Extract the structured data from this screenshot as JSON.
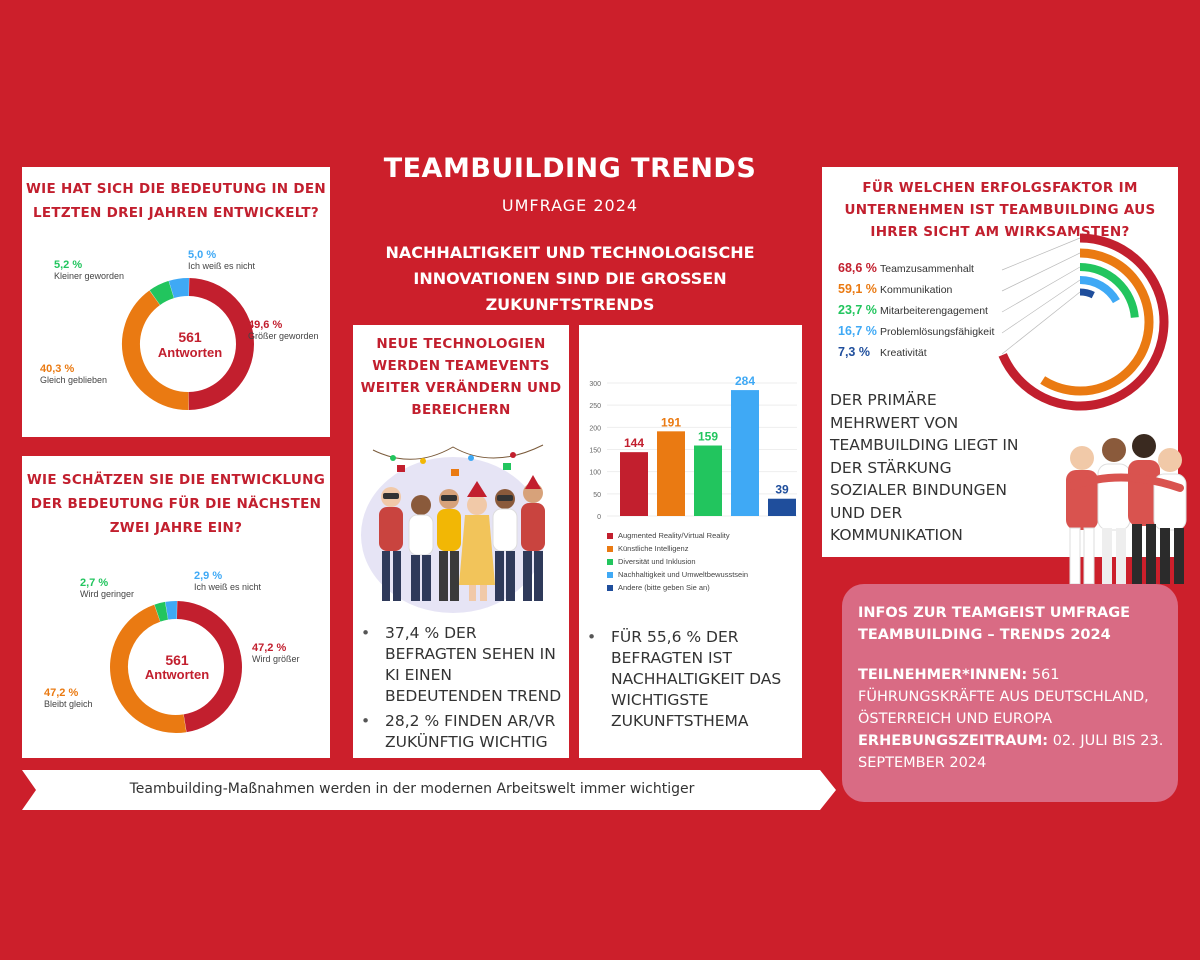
{
  "header": {
    "title": "TEAMBUILDING TRENDS",
    "subtitle": "UMFRAGE 2024",
    "tagline_lines": [
      "NACHHALTIGKEIT UND TECHNOLOGISCHE",
      "INNOVATIONEN SIND DIE GROSSEN",
      "ZUKUNFTSTRENDS"
    ]
  },
  "panel1": {
    "title_lines": [
      "WIE HAT SICH DIE BEDEUTUNG IN DEN",
      "LETZTEN DREI JAHREN ENTWICKELT?"
    ],
    "center_value": "561",
    "center_label": "Antworten"
  },
  "panel2": {
    "title_lines": [
      "WIE SCHÄTZEN SIE DIE ENTWICKLUNG",
      "DER BEDEUTUNG FÜR DIE NÄCHSTEN",
      "ZWEI JAHRE EIN?"
    ],
    "center_value": "561",
    "center_label": "Antworten"
  },
  "panel3": {
    "title_lines": [
      "NEUE TECHNOLOGIEN",
      "WERDEN  TEAMEVENTS",
      "WEITER VERÄNDERN UND",
      "BEREICHERN"
    ],
    "bullets": [
      "37,4 % DER BEFRAGTEN SEHEN IN KI EINEN BEDEUTENDEN TREND",
      "28,2 % FINDEN AR/VR ZUKÜNFTIG WICHTIG"
    ]
  },
  "panel4": {
    "bullets": [
      "FÜR 55,6 % DER BEFRAGTEN IST NACHHALTIGKEIT DAS WICHTIGSTE ZUKUNFTSTHEMA"
    ]
  },
  "panel5": {
    "title_lines": [
      "FÜR WELCHEN ERFOLGSFAKTOR IM",
      "UNTERNEHMEN IST TEAMBUILDING AUS",
      "IHRER SICHT AM WIRKSAMSTEN?"
    ],
    "statement_lines": [
      "DER PRIMÄRE",
      "MEHRWERT VON",
      "TEAMBUILDING LIEGT IN",
      "DER STÄRKUNG",
      "SOZIALER BINDUNGEN",
      "UND DER",
      "KOMMUNIKATION"
    ]
  },
  "info": {
    "title_lines": [
      "INFOS ZUR TEAMGEIST UMFRAGE",
      "TEAMBUILDING – TRENDS 2024"
    ],
    "participants_label": "TEILNEHMER*INNEN:",
    "participants_text": "561 FÜHRUNGSKRÄFTE AUS DEUTSCHLAND, ÖSTERREICH UND EUROPA",
    "period_label": "ERHEBUNGSZEITRAUM:",
    "period_text": "02. JULI BIS 23. SEPTEMBER 2024"
  },
  "banner": {
    "text": "Teambuilding-Maßnahmen werden in der modernen Arbeitswelt immer wichtiger"
  },
  "colors": {
    "background": "#cc1f2b",
    "red": "#c21f2e",
    "orange": "#ea7a12",
    "green": "#22c55e",
    "lightblue": "#3fa9f5",
    "navy": "#1f4e9c",
    "pink": "#d96b84"
  },
  "chart_data": [
    {
      "type": "pie",
      "id": "donut1",
      "slices": [
        {
          "value": 49.6,
          "label": "49,6 %",
          "name": "Größer geworden",
          "color": "#c21f2e"
        },
        {
          "value": 40.3,
          "label": "40,3 %",
          "name": "Gleich geblieben",
          "color": "#ea7a12"
        },
        {
          "value": 5.2,
          "label": "5,2 %",
          "name": "Kleiner geworden",
          "color": "#22c55e"
        },
        {
          "value": 5.0,
          "label": "5,0 %",
          "name": "Ich weiß es nicht",
          "color": "#3fa9f5"
        }
      ]
    },
    {
      "type": "pie",
      "id": "donut2",
      "slices": [
        {
          "value": 47.2,
          "label": "47,2 %",
          "name": "Wird größer",
          "color": "#c21f2e"
        },
        {
          "value": 47.2,
          "label": "47,2 %",
          "name": "Bleibt gleich",
          "color": "#ea7a12"
        },
        {
          "value": 2.7,
          "label": "2,7 %",
          "name": "Wird geringer",
          "color": "#22c55e"
        },
        {
          "value": 2.9,
          "label": "2,9 %",
          "name": "Ich weiß es nicht",
          "color": "#3fa9f5"
        }
      ]
    },
    {
      "type": "bar",
      "id": "bars",
      "categories": [
        "Augmented Reality/Virtual Reality",
        "Künstliche Intelligenz",
        "Diversität und Inklusion",
        "Nachhaltigkeit und Umweltbewusstsein",
        "Andere (bitte geben Sie an)"
      ],
      "values": [
        144,
        191,
        159,
        284,
        39
      ],
      "value_labels": [
        "144",
        "191",
        "159",
        "284",
        "39"
      ],
      "colors": [
        "#c21f2e",
        "#ea7a12",
        "#22c55e",
        "#3fa9f5",
        "#1f4e9c"
      ],
      "yticks": [
        "0",
        "50",
        "100",
        "150",
        "200",
        "250",
        "300"
      ],
      "ylim": [
        0,
        300
      ],
      "legend": "bottom"
    },
    {
      "type": "radial-bar",
      "id": "radial",
      "items": [
        {
          "value": 68.6,
          "label": "68,6 %",
          "name": "Teamzusammenhalt",
          "color": "#c21f2e"
        },
        {
          "value": 59.1,
          "label": "59,1 %",
          "name": "Kommunikation",
          "color": "#ea7a12"
        },
        {
          "value": 23.7,
          "label": "23,7 %",
          "name": "Mitarbeiterengagement",
          "color": "#22c55e"
        },
        {
          "value": 16.7,
          "label": "16,7 %",
          "name": "Problemlösungsfähigkeit",
          "color": "#3fa9f5"
        },
        {
          "value": 7.3,
          "label": "7,3 %",
          "name": "Kreativität",
          "color": "#1f4e9c"
        }
      ]
    }
  ]
}
